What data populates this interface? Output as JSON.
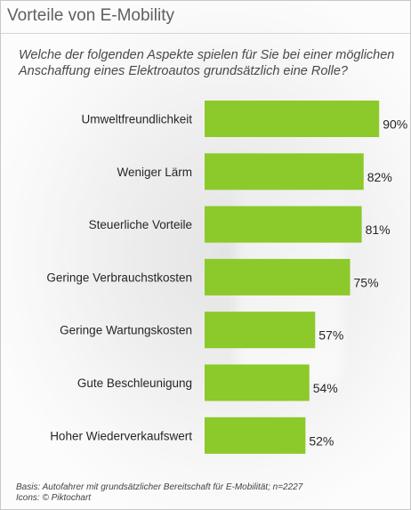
{
  "header": {
    "title": "Vorteile von E-Mobility"
  },
  "question": "Welche der folgenden Aspekte spielen für Sie bei einer möglichen Anschaffung eines Elektroautos grundsätzlich eine Rolle?",
  "colors": {
    "bar": "#8cc92a",
    "title": "#606060",
    "text": "#262626"
  },
  "chart_data": {
    "type": "bar",
    "orientation": "horizontal",
    "categories": [
      "Umweltfreundlichkeit",
      "Weniger Lärm",
      "Steuerliche Vorteile",
      "Geringe Verbrauchstkosten",
      "Geringe Wartungskosten",
      "Gute Beschleunigung",
      "Hoher Wiederverkaufswert"
    ],
    "values": [
      90,
      82,
      81,
      75,
      57,
      54,
      52
    ],
    "value_labels": [
      "90%",
      "82%",
      "81%",
      "75%",
      "57%",
      "54%",
      "52%"
    ],
    "xlim": [
      0,
      100
    ],
    "grid": false,
    "legend": "none"
  },
  "footnote": {
    "basis": "Basis: Autofahrer mit grundsätzlicher Bereitschaft für E-Mobilität; n=2227",
    "icons": "Icons: © Piktochart"
  }
}
